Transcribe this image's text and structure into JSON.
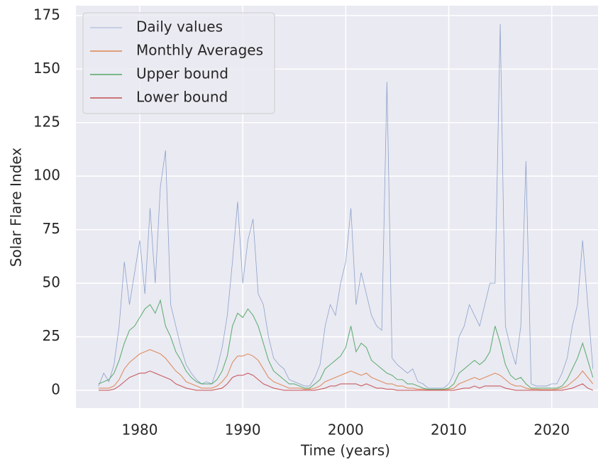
{
  "chart_data": {
    "type": "line",
    "xlabel": "Time (years)",
    "ylabel": "Solar Flare Index",
    "x": [
      1976.0,
      1976.5,
      1977.0,
      1977.5,
      1978.0,
      1978.5,
      1979.0,
      1979.5,
      1980.0,
      1980.5,
      1981.0,
      1981.5,
      1982.0,
      1982.5,
      1983.0,
      1983.5,
      1984.0,
      1984.5,
      1985.0,
      1985.5,
      1986.0,
      1986.5,
      1987.0,
      1987.5,
      1988.0,
      1988.5,
      1989.0,
      1989.5,
      1990.0,
      1990.5,
      1991.0,
      1991.5,
      1992.0,
      1992.5,
      1993.0,
      1993.5,
      1994.0,
      1994.5,
      1995.0,
      1995.5,
      1996.0,
      1996.5,
      1997.0,
      1997.5,
      1998.0,
      1998.5,
      1999.0,
      1999.5,
      2000.0,
      2000.5,
      2001.0,
      2001.5,
      2002.0,
      2002.5,
      2003.0,
      2003.5,
      2004.0,
      2004.5,
      2005.0,
      2005.5,
      2006.0,
      2006.5,
      2007.0,
      2007.5,
      2008.0,
      2008.5,
      2009.0,
      2009.5,
      2010.0,
      2010.5,
      2011.0,
      2011.5,
      2012.0,
      2012.5,
      2013.0,
      2013.5,
      2014.0,
      2014.5,
      2015.0,
      2015.5,
      2016.0,
      2016.5,
      2017.0,
      2017.5,
      2018.0,
      2018.5,
      2019.0,
      2019.5,
      2020.0,
      2020.5,
      2021.0,
      2021.5,
      2022.0,
      2022.5,
      2023.0,
      2023.5,
      2024.0
    ],
    "series": [
      {
        "name": "Daily values",
        "color": "#4c72b0",
        "values": [
          2,
          8,
          4,
          12,
          30,
          60,
          40,
          55,
          70,
          45,
          85,
          50,
          95,
          112,
          40,
          30,
          20,
          12,
          8,
          5,
          3,
          4,
          3,
          10,
          20,
          35,
          60,
          88,
          50,
          70,
          80,
          45,
          40,
          25,
          15,
          12,
          10,
          5,
          4,
          3,
          2,
          2,
          6,
          12,
          30,
          40,
          35,
          50,
          60,
          85,
          40,
          55,
          45,
          35,
          30,
          28,
          144,
          15,
          12,
          10,
          8,
          10,
          4,
          3,
          1,
          1,
          1,
          1,
          3,
          8,
          25,
          30,
          40,
          35,
          30,
          40,
          50,
          50,
          171,
          30,
          20,
          12,
          30,
          107,
          3,
          2,
          2,
          2,
          3,
          3,
          8,
          15,
          30,
          40,
          70,
          40,
          10
        ]
      },
      {
        "name": "Monthly Averages",
        "color": "#dd8452",
        "values": [
          1,
          1,
          1,
          2,
          5,
          10,
          13,
          15,
          17,
          18,
          19,
          18,
          17,
          15,
          12,
          9,
          7,
          4,
          3,
          2,
          1,
          1,
          1,
          2,
          4,
          7,
          13,
          16,
          16,
          17,
          16,
          14,
          10,
          6,
          4,
          3,
          2,
          1,
          1,
          1,
          0.5,
          0.5,
          1,
          2,
          4,
          5,
          6,
          7,
          8,
          9,
          8,
          7,
          8,
          6,
          5,
          4,
          3,
          3,
          2,
          2,
          1,
          1,
          0.5,
          0.5,
          0.2,
          0.2,
          0.2,
          0.2,
          0.5,
          1,
          3,
          4,
          5,
          6,
          5,
          6,
          7,
          8,
          7,
          5,
          3,
          2,
          2,
          1,
          0.5,
          0.5,
          0.3,
          0.3,
          0.3,
          0.5,
          1,
          2,
          4,
          6,
          9,
          6,
          3
        ]
      },
      {
        "name": "Upper bound",
        "color": "#55a868",
        "values": [
          3,
          4,
          5,
          8,
          14,
          22,
          28,
          30,
          34,
          38,
          40,
          36,
          42,
          30,
          25,
          18,
          14,
          9,
          6,
          4,
          3,
          3,
          3,
          5,
          9,
          16,
          30,
          36,
          34,
          38,
          35,
          30,
          22,
          14,
          9,
          7,
          5,
          3,
          3,
          2,
          1,
          1,
          3,
          5,
          10,
          12,
          14,
          16,
          20,
          30,
          18,
          22,
          20,
          14,
          12,
          10,
          8,
          7,
          5,
          5,
          3,
          3,
          2,
          1,
          0.5,
          0.5,
          0.5,
          0.5,
          1,
          3,
          8,
          10,
          12,
          14,
          12,
          14,
          18,
          30,
          22,
          12,
          7,
          5,
          6,
          3,
          1,
          1,
          1,
          1,
          1,
          1,
          2,
          5,
          10,
          15,
          22,
          14,
          6
        ]
      },
      {
        "name": "Lower bound",
        "color": "#c44e52",
        "values": [
          0,
          0,
          0,
          0.5,
          2,
          4,
          6,
          7,
          8,
          8,
          9,
          8,
          7,
          6,
          5,
          3,
          2,
          1,
          0.5,
          0,
          0,
          0,
          0,
          0.5,
          1,
          3,
          6,
          7,
          7,
          8,
          7,
          5,
          3,
          2,
          1,
          0.5,
          0,
          0,
          0,
          0,
          0,
          0,
          0,
          0.5,
          1,
          2,
          2,
          3,
          3,
          3,
          3,
          2,
          3,
          2,
          1,
          1,
          0.5,
          0.5,
          0,
          0,
          0,
          0,
          0,
          0,
          0,
          0,
          0,
          0,
          0,
          0,
          0.5,
          1,
          1,
          2,
          1,
          2,
          2,
          2,
          2,
          1,
          0.5,
          0,
          0,
          0,
          0,
          0,
          0,
          0,
          0,
          0,
          0,
          0.5,
          1,
          2,
          3,
          1,
          0
        ]
      }
    ],
    "xlim": [
      1973.8,
      2024.5
    ],
    "ylim": [
      -8.3,
      179.6
    ],
    "xticks": [
      1980,
      1990,
      2000,
      2010,
      2020
    ],
    "yticks": [
      0,
      25,
      50,
      75,
      100,
      125,
      150,
      175
    ],
    "grid": true,
    "legend": "upper left"
  }
}
